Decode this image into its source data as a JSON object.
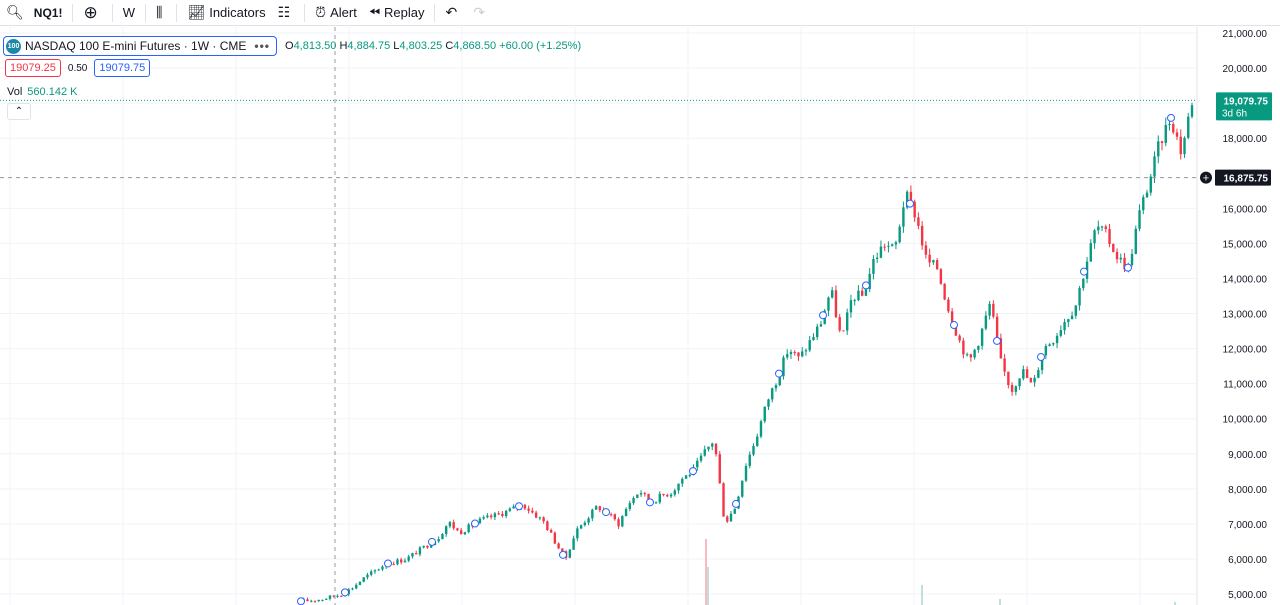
{
  "toolbar": {
    "symbol": "NQ1!",
    "interval": "W",
    "indicators_label": "Indicators",
    "alert_label": "Alert",
    "replay_label": "Replay"
  },
  "legend": {
    "logo_text": "100",
    "title": "NASDAQ 100 E-mini Futures · 1W · CME",
    "ohlc": {
      "o_label": "O",
      "o": "4,813.50",
      "h_label": "H",
      "h": "4,884.75",
      "l_label": "L",
      "l": "4,803.25",
      "c_label": "C",
      "c": "4,868.50",
      "change": "+60.00 (+1.25%)"
    }
  },
  "quotes": {
    "sell": "19079.25",
    "spread": "0.50",
    "buy": "19079.75"
  },
  "volume": {
    "label": "Vol",
    "value": "560.142 K"
  },
  "colors": {
    "up": "#089981",
    "down": "#f23645",
    "accent": "#2962ff"
  },
  "chart_data": {
    "type": "candlestick",
    "symbol": "NASDAQ 100 E-mini Futures",
    "interval": "1W",
    "exchange": "CME",
    "y_axis_ticks": [
      "21,000.00",
      "20,000.00",
      "19,000.00",
      "18,000.00",
      "16,000.00",
      "15,000.00",
      "14,000.00",
      "13,000.00",
      "12,000.00",
      "11,000.00",
      "10,000.00",
      "9,000.00",
      "8,000.00",
      "7,000.00",
      "6,000.00",
      "5,000.00"
    ],
    "ylim": [
      4700,
      21300
    ],
    "last_price": {
      "value": 19079.75,
      "label": "19,079.75",
      "countdown": "3d 6h"
    },
    "crosshair": {
      "value": 16875.75,
      "label": "16,875.75"
    },
    "path_points": [
      [
        0,
        4790
      ],
      [
        2,
        4850
      ],
      [
        4,
        5000
      ],
      [
        5,
        5200
      ],
      [
        6,
        5450
      ],
      [
        7,
        5650
      ],
      [
        8,
        5850
      ],
      [
        10,
        6000
      ],
      [
        12,
        6400
      ],
      [
        13,
        6600
      ],
      [
        14,
        7050
      ],
      [
        15,
        6750
      ],
      [
        17,
        7100
      ],
      [
        19,
        7300
      ],
      [
        21,
        7550
      ],
      [
        23,
        7050
      ],
      [
        24,
        6500
      ],
      [
        25,
        6000
      ],
      [
        26,
        6800
      ],
      [
        28,
        7500
      ],
      [
        29,
        7300
      ],
      [
        30,
        7000
      ],
      [
        31,
        7600
      ],
      [
        32,
        7950
      ],
      [
        33,
        7600
      ],
      [
        34,
        7800
      ],
      [
        35,
        7900
      ],
      [
        36,
        8300
      ],
      [
        37,
        8500
      ],
      [
        38,
        9000
      ],
      [
        39,
        9400
      ],
      [
        40,
        7000
      ],
      [
        41,
        7500
      ],
      [
        42,
        8700
      ],
      [
        43,
        9500
      ],
      [
        44,
        10500
      ],
      [
        45,
        11200
      ],
      [
        46,
        12000
      ],
      [
        47,
        11700
      ],
      [
        48,
        12200
      ],
      [
        49,
        12700
      ],
      [
        50,
        13700
      ],
      [
        51,
        12200
      ],
      [
        52,
        13500
      ],
      [
        53,
        13500
      ],
      [
        54,
        14500
      ],
      [
        55,
        15000
      ],
      [
        56,
        14800
      ],
      [
        57,
        16400
      ],
      [
        58,
        15800
      ],
      [
        59,
        14500
      ],
      [
        60,
        14300
      ],
      [
        61,
        13200
      ],
      [
        62,
        12300
      ],
      [
        63,
        11600
      ],
      [
        64,
        12300
      ],
      [
        65,
        13300
      ],
      [
        66,
        11600
      ],
      [
        67,
        10800
      ],
      [
        68,
        11400
      ],
      [
        69,
        10900
      ],
      [
        70,
        12000
      ],
      [
        71,
        12300
      ],
      [
        72,
        12800
      ],
      [
        73,
        13200
      ],
      [
        74,
        14400
      ],
      [
        75,
        15500
      ],
      [
        76,
        15200
      ],
      [
        77,
        14600
      ],
      [
        78,
        14300
      ],
      [
        79,
        15800
      ],
      [
        80,
        16800
      ],
      [
        81,
        17900
      ],
      [
        82,
        18600
      ],
      [
        83,
        17600
      ],
      [
        84,
        19079
      ]
    ]
  }
}
